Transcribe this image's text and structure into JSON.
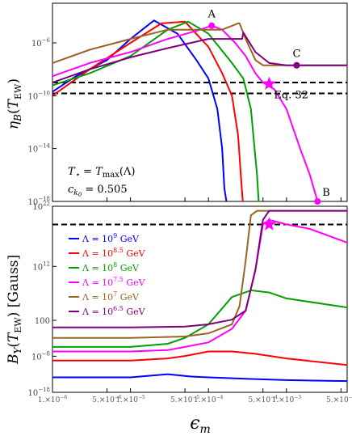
{
  "chart_data": [
    {
      "type": "line",
      "panel": "top",
      "xscale": "log",
      "yscale": "log",
      "xlim": [
        1e-06,
        0.006
      ],
      "ylim": [
        1e-18,
        0.001
      ],
      "ylabel": "η_B(T_EW)",
      "yticks": [
        "10^-6",
        "10^-10",
        "10^-14",
        "10^-18"
      ],
      "annotation": [
        "T⋆ = T_max(Λ)",
        "c_k0 = 0.505"
      ],
      "hlines": [
        1.5e-10,
        1e-09
      ],
      "series": [
        {
          "name": "Λ = 10^9 GeV",
          "color": "#0000ff",
          "x": [
            1e-06,
            2e-06,
            5e-06,
            1e-05,
            2e-05,
            4e-05,
            7e-05,
            0.0001,
            0.00013,
            0.00015,
            0.00016,
            0.00017
          ],
          "y": [
            2e-10,
            3e-09,
            5e-08,
            2e-06,
            5e-05,
            5e-06,
            5e-08,
            2e-09,
            1e-11,
            1e-14,
            1e-17,
            1e-18
          ]
        },
        {
          "name": "Λ = 10^8.5 GeV",
          "color": "#ff0000",
          "x": [
            1e-06,
            3e-06,
            1e-05,
            2.5e-05,
            5e-05,
            0.0001,
            0.00015,
            0.0002,
            0.00024,
            0.00026,
            0.000275
          ],
          "y": [
            1e-10,
            1e-08,
            1e-06,
            3e-05,
            4e-05,
            5e-07,
            5e-09,
            1e-10,
            1e-13,
            1e-16,
            1e-18
          ]
        },
        {
          "name": "Λ = 10^8 GeV",
          "color": "#00a000",
          "x": [
            1e-06,
            3e-06,
            1e-05,
            3e-05,
            5.5e-05,
            0.0001,
            0.0002,
            0.00028,
            0.00035,
            0.00039,
            0.00042,
            0.00044
          ],
          "y": [
            6e-10,
            5e-09,
            1e-07,
            1e-05,
            4e-05,
            5e-06,
            3e-08,
            2e-09,
            1e-11,
            1e-14,
            1e-16,
            1e-18
          ]
        },
        {
          "name": "Λ = 10^7.5 GeV",
          "color": "#ff00ff",
          "x": [
            1e-06,
            3e-06,
            1e-05,
            3e-05,
            7e-05,
            0.00011,
            0.00015,
            0.00022,
            0.0003,
            0.0004,
            0.0005,
            0.0007,
            0.001,
            0.0015,
            0.002,
            0.0025
          ],
          "y": [
            3e-09,
            3e-08,
            2e-07,
            2e-06,
            8e-06,
            2e-05,
            1e-05,
            1e-06,
            1e-07,
            5e-09,
            1e-09,
            3e-10,
            1e-11,
            1e-14,
            1e-16,
            1e-18
          ]
        },
        {
          "name": "Λ = 10^7 GeV",
          "color": "#9a6324",
          "x": [
            1e-06,
            3e-06,
            1e-05,
            3e-05,
            8e-05,
            0.00015,
            0.00024,
            0.00025,
            0.0003,
            0.0004,
            0.0005,
            0.0006,
            0.001,
            0.006
          ],
          "y": [
            3e-08,
            3e-07,
            2e-06,
            1e-05,
            1e-05,
            1e-05,
            3e-05,
            3e-05,
            2e-06,
            5e-08,
            2e-08,
            2e-08,
            2e-08,
            2e-08
          ]
        },
        {
          "name": "Λ = 10^6.5 GeV",
          "color": "#7f007f",
          "x": [
            1e-06,
            3e-06,
            1e-05,
            3e-05,
            0.0001,
            0.0002,
            0.00027,
            0.00028,
            0.0004,
            0.0006,
            0.001,
            0.0015,
            0.002,
            0.003,
            0.006
          ],
          "y": [
            1e-09,
            1e-08,
            8e-08,
            4e-07,
            2e-06,
            2e-06,
            2e-06,
            6e-06,
            2e-07,
            3e-08,
            2e-08,
            2e-08,
            2e-08,
            2e-08,
            2e-08
          ]
        }
      ],
      "points": [
        {
          "label": "A",
          "x": 0.00011,
          "y": 2e-05,
          "color": "#ff00ff",
          "marker": "dot"
        },
        {
          "label": "Eq. 32",
          "x": 0.0006,
          "y": 8e-10,
          "color": "#ff00ff",
          "marker": "star"
        },
        {
          "label": "B",
          "x": 0.0025,
          "y": 1e-18,
          "color": "#ff00ff",
          "marker": "dot"
        },
        {
          "label": "C",
          "x": 0.00135,
          "y": 2e-08,
          "color": "#7f007f",
          "marker": "dot"
        }
      ]
    },
    {
      "type": "line",
      "panel": "bottom",
      "xscale": "log",
      "yscale": "log",
      "xlim": [
        1e-06,
        0.006
      ],
      "ylim": [
        1e-19,
        1e+22
      ],
      "ylabel": "B_Y(T_EW)[Gauss]",
      "xlabel": "ϵ_m",
      "xticks": [
        "1.×10^-6",
        "5.×10^-6",
        "1.×10^-5",
        "5.×10^-5",
        "1.×10^-4",
        "5.×10^-4",
        "1.×10^-3",
        "5.×10^-3"
      ],
      "yticks": [
        "10^22",
        "10^12",
        "100",
        "10^-8",
        "10^-18"
      ],
      "hlines": [
        1e+18
      ],
      "legend": {
        "placement": "left"
      },
      "series": [
        {
          "name": "Λ = 10^9 GeV",
          "color": "#0000ff",
          "x": [
            1e-06,
            1e-05,
            3e-05,
            6e-05,
            0.0001,
            0.0003,
            0.001,
            0.006
          ],
          "y": [
            2e-16,
            2e-16,
            1e-15,
            3e-16,
            2e-16,
            1e-16,
            5e-17,
            3e-17
          ]
        },
        {
          "name": "Λ = 10^8.5 GeV",
          "color": "#ff0000",
          "x": [
            1e-06,
            1e-05,
            3e-05,
            5e-05,
            0.0001,
            0.0002,
            0.0004,
            0.001,
            0.006
          ],
          "y": [
            1e-12,
            1e-12,
            3e-12,
            1e-11,
            1e-10,
            1e-10,
            3e-11,
            3e-12,
            1e-13
          ]
        },
        {
          "name": "Λ = 10^8 GeV",
          "color": "#00a000",
          "x": [
            1e-06,
            1e-05,
            3e-05,
            5e-05,
            0.0001,
            0.0002,
            0.00035,
            0.0006,
            0.001,
            0.006
          ],
          "y": [
            1e-09,
            1e-09,
            5e-09,
            1e-07,
            0.0001,
            100.0,
            3000.0,
            1000.0,
            50.0,
            0.5
          ]
        },
        {
          "name": "Λ = 10^7.5 GeV",
          "color": "#ff00ff",
          "x": [
            1e-06,
            1e-05,
            3e-05,
            5e-05,
            0.0001,
            0.0002,
            0.0003,
            0.0004,
            0.0005,
            0.0006,
            0.001,
            0.002,
            0.006
          ],
          "y": [
            1e-10,
            1e-10,
            2e-10,
            1e-09,
            1e-08,
            1e-05,
            0.1,
            100000000.0,
            1e+18,
            1e+19,
            1e+18,
            1e+17,
            100000000000000.0
          ]
        },
        {
          "name": "Λ = 10^7 GeV",
          "color": "#9a6324",
          "x": [
            1e-06,
            1e-05,
            5e-05,
            0.0001,
            0.0002,
            0.00025,
            0.0003,
            0.00035,
            0.00042,
            0.0006,
            0.001,
            0.006
          ],
          "y": [
            1e-07,
            1e-07,
            2e-07,
            1e-06,
            0.0001,
            1.0,
            10000000000.0,
            1e+20,
            1e+21,
            1e+21,
            1e+21,
            1e+21
          ]
        },
        {
          "name": "Λ = 10^6.5 GeV",
          "color": "#7f007f",
          "x": [
            1e-06,
            1e-05,
            5e-05,
            0.0001,
            0.0002,
            0.0003,
            0.0004,
            0.0005,
            0.0006,
            0.001,
            0.003,
            0.006
          ],
          "y": [
            2e-05,
            2e-05,
            3e-05,
            0.0001,
            0.001,
            0.1,
            100000000.0,
            1e+19,
            1e+21,
            1e+21,
            1e+21,
            1e+21
          ]
        }
      ],
      "points": [
        {
          "label": "",
          "x": 0.0006,
          "y": 1e+18,
          "color": "#ff00ff",
          "marker": "star"
        }
      ]
    }
  ]
}
